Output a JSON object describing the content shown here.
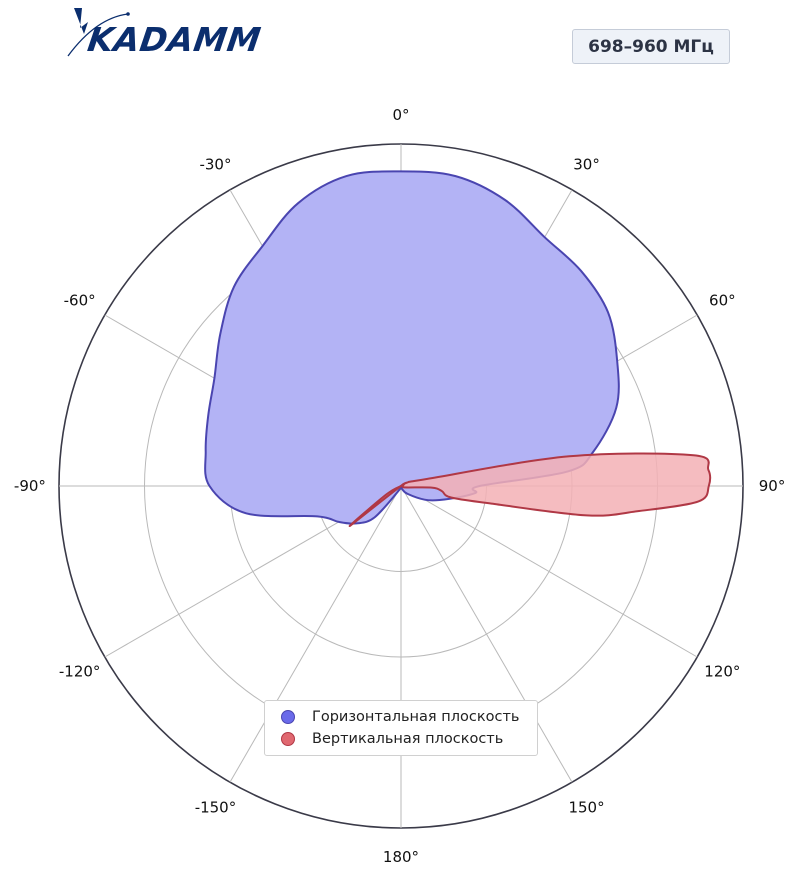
{
  "logo": {
    "text": "KADAMM",
    "color": "#0b2e6e"
  },
  "band_label": "698–960 МГц",
  "chart_data": {
    "type": "polar-area",
    "angle_unit": "deg",
    "zero_direction": "top",
    "direction": "clockwise",
    "theta_ticks": [
      {
        "deg": 0,
        "label": "0°"
      },
      {
        "deg": 30,
        "label": "30°"
      },
      {
        "deg": 60,
        "label": "60°"
      },
      {
        "deg": 90,
        "label": "90°"
      },
      {
        "deg": 120,
        "label": "120°"
      },
      {
        "deg": 150,
        "label": "150°"
      },
      {
        "deg": 180,
        "label": "180°"
      },
      {
        "deg": -150,
        "label": "-150°"
      },
      {
        "deg": -120,
        "label": "-120°"
      },
      {
        "deg": -90,
        "label": "-90°"
      },
      {
        "deg": -60,
        "label": "-60°"
      },
      {
        "deg": -30,
        "label": "-30°"
      }
    ],
    "r_range": [
      0,
      1
    ],
    "r_grid": [
      0.25,
      0.5,
      0.75,
      1.0
    ],
    "grid": true,
    "legend_position": "lower-center",
    "series": [
      {
        "name": "Горизонтальная плоскость",
        "color": "#6a6aea",
        "fill": "#b3b3f5",
        "stroke": "#4a45b0",
        "points": [
          [
            0,
            0.92
          ],
          [
            10,
            0.92
          ],
          [
            20,
            0.89
          ],
          [
            30,
            0.84
          ],
          [
            40,
            0.82
          ],
          [
            50,
            0.79
          ],
          [
            60,
            0.73
          ],
          [
            70,
            0.67
          ],
          [
            80,
            0.57
          ],
          [
            85,
            0.49
          ],
          [
            90,
            0.23
          ],
          [
            95,
            0.22
          ],
          [
            100,
            0.18
          ],
          [
            110,
            0.12
          ],
          [
            120,
            0.08
          ],
          [
            140,
            0.03
          ],
          [
            160,
            0.01
          ],
          [
            180,
            0.0
          ],
          [
            200,
            0.01
          ],
          [
            220,
            0.12
          ],
          [
            230,
            0.17
          ],
          [
            240,
            0.21
          ],
          [
            250,
            0.26
          ],
          [
            260,
            0.46
          ],
          [
            270,
            0.56
          ],
          [
            280,
            0.58
          ],
          [
            290,
            0.6
          ],
          [
            300,
            0.63
          ],
          [
            310,
            0.69
          ],
          [
            320,
            0.76
          ],
          [
            330,
            0.81
          ],
          [
            340,
            0.88
          ],
          [
            350,
            0.92
          ]
        ]
      },
      {
        "name": "Вертикальная плоскость",
        "color": "#e06870",
        "fill": "#f3b0b5",
        "stroke": "#b03845",
        "points": [
          [
            0,
            0.0
          ],
          [
            60,
            0.02
          ],
          [
            75,
            0.08
          ],
          [
            80,
            0.5
          ],
          [
            84,
            0.86
          ],
          [
            87,
            0.9
          ],
          [
            90,
            0.9
          ],
          [
            93,
            0.87
          ],
          [
            96,
            0.7
          ],
          [
            99,
            0.55
          ],
          [
            101,
            0.27
          ],
          [
            103,
            0.15
          ],
          [
            97,
            0.12
          ],
          [
            93,
            0.09
          ],
          [
            115,
            0.01
          ],
          [
            180,
            0.0
          ],
          [
            232,
            0.19
          ],
          [
            240,
            0.05
          ],
          [
            300,
            0.0
          ],
          [
            360,
            0.0
          ]
        ]
      }
    ]
  }
}
